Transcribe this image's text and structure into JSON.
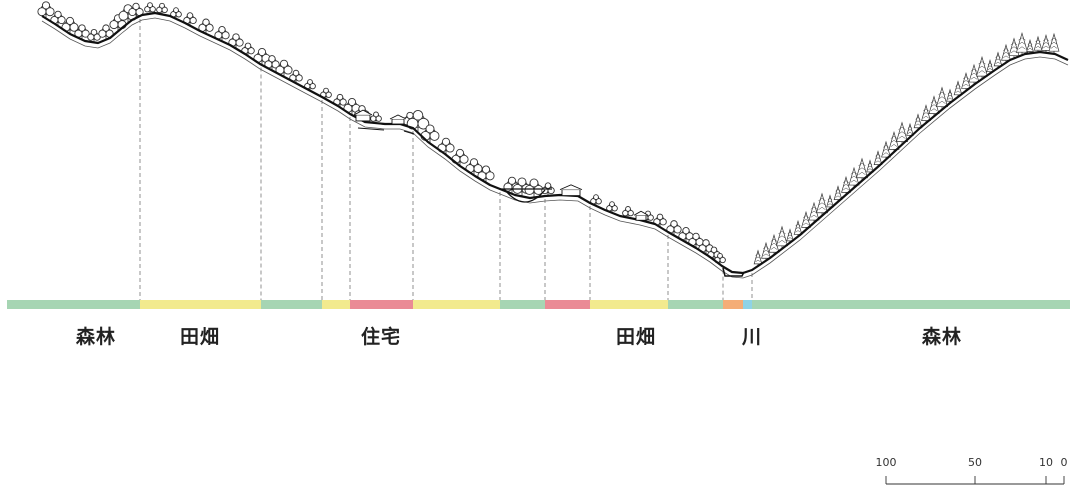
{
  "land_use_bands": [
    {
      "type": "forest",
      "color": "#a6d5b3"
    },
    {
      "type": "farmland",
      "color": "#f2ea8e"
    },
    {
      "type": "forest",
      "color": "#a6d5b3"
    },
    {
      "type": "farmland",
      "color": "#f2ea8e"
    },
    {
      "type": "residential",
      "color": "#ea8a95"
    },
    {
      "type": "farmland",
      "color": "#f2ea8e"
    },
    {
      "type": "forest",
      "color": "#a6d5b3"
    },
    {
      "type": "residential",
      "color": "#ea8a95"
    },
    {
      "type": "farmland",
      "color": "#f2ea8e"
    },
    {
      "type": "forest",
      "color": "#a6d5b3"
    },
    {
      "type": "road",
      "color": "#f4ad77"
    },
    {
      "type": "river",
      "color": "#8fd3e6"
    },
    {
      "type": "forest",
      "color": "#a6d5b3"
    }
  ],
  "labels": {
    "forest_left": "森林",
    "farmland_left": "田畑",
    "residential": "住宅",
    "farmland_right": "田畑",
    "river": "川",
    "forest_right": "森林"
  },
  "scale_bar": {
    "ticks": [
      "100",
      "50",
      "10",
      "0"
    ]
  },
  "colors": {
    "terrain_line": "#111111",
    "vegetation": "#333333",
    "guide_line": "#777777"
  }
}
